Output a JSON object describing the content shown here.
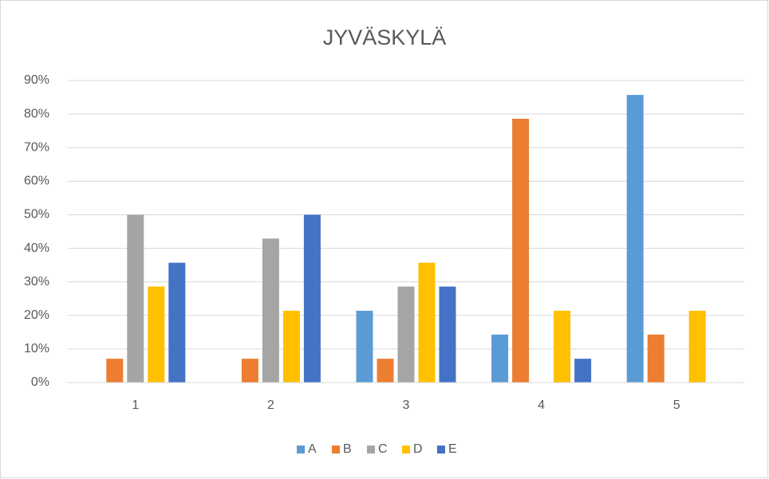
{
  "chart_data": {
    "type": "bar",
    "title": "JYVÄSKYLÄ",
    "categories": [
      "1",
      "2",
      "3",
      "4",
      "5"
    ],
    "series": [
      {
        "name": "A",
        "color": "#5b9bd5",
        "values": [
          0,
          0,
          21.4,
          14.3,
          85.7
        ]
      },
      {
        "name": "B",
        "color": "#ed7d31",
        "values": [
          7.1,
          7.1,
          7.1,
          78.6,
          14.3
        ]
      },
      {
        "name": "C",
        "color": "#a5a5a5",
        "values": [
          50,
          42.9,
          28.6,
          0,
          0
        ]
      },
      {
        "name": "D",
        "color": "#ffc000",
        "values": [
          28.6,
          21.4,
          35.7,
          21.4,
          21.4
        ]
      },
      {
        "name": "E",
        "color": "#4472c4",
        "values": [
          35.7,
          50,
          28.6,
          7.1,
          0
        ]
      }
    ],
    "ylim": [
      0,
      90
    ],
    "yticks": [
      {
        "value": 0,
        "label": "0%"
      },
      {
        "value": 10,
        "label": "10%"
      },
      {
        "value": 20,
        "label": "20%"
      },
      {
        "value": 30,
        "label": "30%"
      },
      {
        "value": 40,
        "label": "40%"
      },
      {
        "value": 50,
        "label": "50%"
      },
      {
        "value": 60,
        "label": "60%"
      },
      {
        "value": 70,
        "label": "70%"
      },
      {
        "value": 80,
        "label": "80%"
      },
      {
        "value": 90,
        "label": "90%"
      }
    ],
    "grid": true,
    "legend": "bottom"
  }
}
